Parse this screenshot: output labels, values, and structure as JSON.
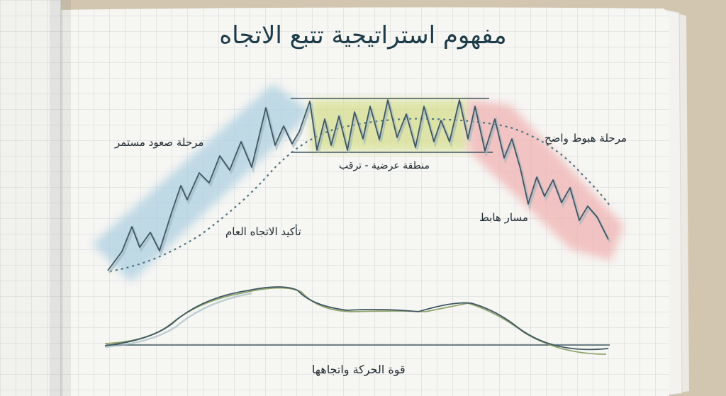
{
  "title": "مفهوم استراتيجية تتبع الاتجاه",
  "labels": {
    "uptrend": "مرحلة صعود مستمر",
    "downtrend": "مرحلة هبوط واضح",
    "range": "منطقة عرضية - ترقب",
    "confirmation": "تأكيد الاتجاه العام",
    "down_path": "مسار هابط",
    "momentum": "قوة الحركة واتجاهها"
  },
  "colors": {
    "ink": "#3f5763",
    "up_zone": "#a9cde0",
    "range_zone": "#d6df8f",
    "down_zone": "#f0b2b2",
    "secondary_line": "#8fa36a"
  }
}
